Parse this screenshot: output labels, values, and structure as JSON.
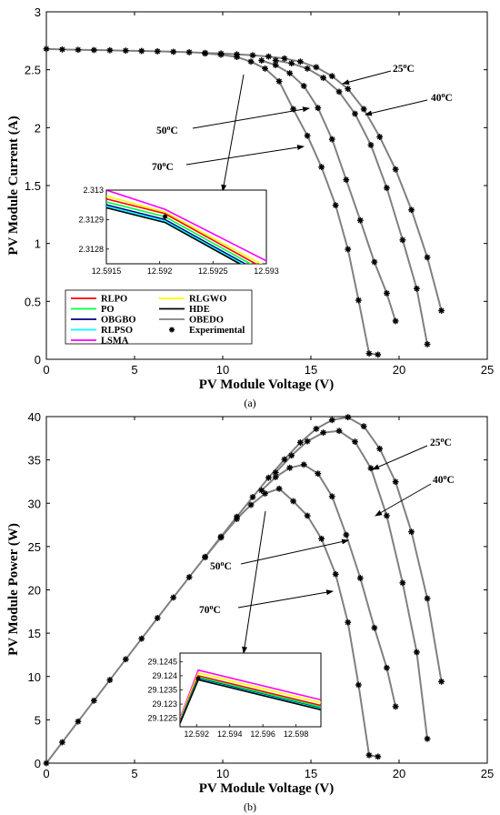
{
  "chart_data": [
    {
      "type": "line",
      "caption": "(a)",
      "xlabel": "PV Module Voltage (V)",
      "ylabel": "PV Module Current (A)",
      "xlim": [
        0,
        25
      ],
      "ylim": [
        0,
        3
      ],
      "xticks": [
        "0",
        "5",
        "10",
        "15",
        "20",
        "25"
      ],
      "yticks": [
        "0",
        "0.5",
        "1",
        "1.5",
        "2",
        "2.5",
        "3"
      ],
      "grid": false,
      "legend": {
        "placement": "bottom-left",
        "entries": [
          {
            "name": "RLPO",
            "color": "#ff0000",
            "style": "line"
          },
          {
            "name": "RLGWO",
            "color": "#ffff00",
            "style": "line"
          },
          {
            "name": "PO",
            "color": "#00ff40",
            "style": "line"
          },
          {
            "name": "HDE",
            "color": "#000000",
            "style": "line"
          },
          {
            "name": "OBGBO",
            "color": "#000080",
            "style": "line"
          },
          {
            "name": "OBEDO",
            "color": "#808080",
            "style": "line"
          },
          {
            "name": "RLPSO",
            "color": "#00ffff",
            "style": "line"
          },
          {
            "name": "Experimental",
            "color": "#000000",
            "style": "star"
          },
          {
            "name": "LSMA",
            "color": "#ff00ff",
            "style": "line"
          }
        ]
      },
      "series": [
        {
          "temperature": "25",
          "x": [
            0,
            0.9,
            1.8,
            2.7,
            3.6,
            4.5,
            5.4,
            6.3,
            7.2,
            8.1,
            9.0,
            9.9,
            10.8,
            11.7,
            12.6,
            13.5,
            14.4,
            15.3,
            16.2,
            17.1,
            18.0,
            18.9,
            19.8,
            20.7,
            21.6,
            22.4
          ],
          "y": [
            2.68,
            2.675,
            2.672,
            2.67,
            2.668,
            2.665,
            2.662,
            2.659,
            2.655,
            2.651,
            2.645,
            2.64,
            2.633,
            2.625,
            2.614,
            2.597,
            2.57,
            2.522,
            2.445,
            2.335,
            2.16,
            1.92,
            1.64,
            1.29,
            0.88,
            0.42
          ]
        },
        {
          "temperature": "40",
          "x": [
            13.0,
            13.9,
            14.8,
            15.7,
            16.6,
            17.5,
            18.4,
            19.3,
            20.2,
            21.0,
            21.6
          ],
          "y": [
            2.58,
            2.555,
            2.51,
            2.43,
            2.31,
            2.12,
            1.85,
            1.48,
            1.03,
            0.61,
            0.13
          ]
        },
        {
          "temperature": "50",
          "x": [
            12.2,
            13.0,
            13.8,
            14.6,
            15.4,
            16.2,
            17.0,
            17.8,
            18.6,
            19.3,
            19.8
          ],
          "y": [
            2.58,
            2.54,
            2.47,
            2.36,
            2.17,
            1.9,
            1.55,
            1.2,
            0.84,
            0.57,
            0.33
          ]
        },
        {
          "temperature": "70",
          "x": [
            9.0,
            9.9,
            10.8,
            11.6,
            12.4,
            13.2,
            14.0,
            14.8,
            15.6,
            16.4,
            17.1,
            17.7,
            18.3,
            18.8
          ],
          "y": [
            2.64,
            2.63,
            2.61,
            2.57,
            2.51,
            2.4,
            2.16,
            1.93,
            1.66,
            1.33,
            0.95,
            0.51,
            0.05,
            0.04
          ]
        }
      ],
      "annotations": [
        {
          "text": "25°C",
          "temperature": "25"
        },
        {
          "text": "40°C",
          "temperature": "40"
        },
        {
          "text": "50°C",
          "temperature": "50"
        },
        {
          "text": "70°C",
          "temperature": "70"
        }
      ],
      "inset": {
        "xlim": [
          12.5915,
          12.593
        ],
        "ylim": [
          2.31275,
          2.313
        ],
        "xticks": [
          "12.5915",
          "12.592",
          "12.5925",
          "12.593"
        ],
        "yticks": [
          "2.3128",
          "2.3129",
          "2.313"
        ],
        "lines": [
          {
            "name": "LSMA",
            "color": "#ff00ff",
            "y": [
              2.313,
              2.312935,
              2.31276
            ]
          },
          {
            "name": "RLGWO",
            "color": "#ffff00",
            "y": [
              2.31298,
              2.312925,
              2.31274
            ]
          },
          {
            "name": "RLPO",
            "color": "#ff0000",
            "y": [
              2.31297,
              2.31292,
              2.31273
            ]
          },
          {
            "name": "PO",
            "color": "#00ff40",
            "y": [
              2.31296,
              2.31291,
              2.31272
            ]
          },
          {
            "name": "OBGBO",
            "color": "#000080",
            "y": [
              2.31295,
              2.3129,
              2.31271
            ]
          },
          {
            "name": "RLPSO",
            "color": "#00ffff",
            "y": [
              2.312945,
              2.312895,
              2.312705
            ]
          },
          {
            "name": "HDE",
            "color": "#000000",
            "y": [
              2.31294,
              2.31289,
              2.3127
            ]
          }
        ],
        "x": [
          12.5915,
          12.59205,
          12.593
        ],
        "marker": {
          "x": 12.59205,
          "y": 2.31291
        }
      }
    },
    {
      "type": "line",
      "caption": "(b)",
      "xlabel": "PV Module Voltage (V)",
      "ylabel": "PV Module Power (W)",
      "xlim": [
        0,
        25
      ],
      "ylim": [
        0,
        40
      ],
      "xticks": [
        "0",
        "5",
        "10",
        "15",
        "20",
        "25"
      ],
      "yticks": [
        "0",
        "5",
        "10",
        "15",
        "20",
        "25",
        "30",
        "35",
        "40"
      ],
      "grid": false,
      "series": [
        {
          "temperature": "25",
          "x": [
            0,
            0.9,
            1.8,
            2.7,
            3.6,
            4.5,
            5.4,
            6.3,
            7.2,
            8.1,
            9.0,
            9.9,
            10.8,
            11.7,
            12.6,
            13.5,
            14.4,
            15.3,
            16.2,
            17.1,
            18.0,
            18.9,
            19.8,
            20.7,
            21.6,
            22.4
          ],
          "y": [
            0,
            2.41,
            4.81,
            7.21,
            9.6,
            11.99,
            14.37,
            16.75,
            19.12,
            21.47,
            23.81,
            26.14,
            28.44,
            30.71,
            32.94,
            35.06,
            37.01,
            38.59,
            39.61,
            39.93,
            38.88,
            36.29,
            32.47,
            26.7,
            19.01,
            9.41
          ]
        },
        {
          "temperature": "40",
          "x": [
            13.0,
            13.9,
            14.8,
            15.7,
            16.6,
            17.5,
            18.4,
            19.3,
            20.2,
            21.0,
            21.6
          ],
          "y": [
            33.54,
            35.51,
            37.15,
            38.15,
            38.35,
            37.1,
            34.04,
            28.56,
            20.81,
            12.81,
            2.81
          ]
        },
        {
          "temperature": "50",
          "x": [
            12.2,
            13.0,
            13.8,
            14.6,
            15.4,
            16.2,
            17.0,
            17.8,
            18.6,
            19.3,
            19.8
          ],
          "y": [
            31.48,
            33.02,
            34.09,
            34.46,
            33.42,
            30.78,
            26.35,
            21.36,
            15.62,
            11.0,
            6.53
          ]
        },
        {
          "temperature": "70",
          "x": [
            9.0,
            9.9,
            10.8,
            11.6,
            12.4,
            13.2,
            14.0,
            14.8,
            15.6,
            16.4,
            17.1,
            17.7,
            18.3,
            18.8
          ],
          "y": [
            23.76,
            26.04,
            28.19,
            29.81,
            31.12,
            31.68,
            30.24,
            28.56,
            25.9,
            21.81,
            16.25,
            9.03,
            0.92,
            0.75
          ]
        }
      ],
      "annotations": [
        {
          "text": "25°C",
          "temperature": "25"
        },
        {
          "text": "40°C",
          "temperature": "40"
        },
        {
          "text": "50°C",
          "temperature": "50"
        },
        {
          "text": "70°C",
          "temperature": "70"
        }
      ],
      "inset": {
        "xlim": [
          12.591,
          12.5995
        ],
        "ylim": [
          29.1222,
          29.1248
        ],
        "xticks": [
          "12.592",
          "12.594",
          "12.596",
          "12.598"
        ],
        "yticks": [
          "29.1225",
          "29.123",
          "29.1235",
          "29.124",
          "29.1245"
        ],
        "lines": [
          {
            "name": "LSMA",
            "color": "#ff00ff",
            "y": [
              29.1225,
              29.1242,
              29.12315
            ]
          },
          {
            "name": "RLGWO",
            "color": "#ffff00",
            "y": [
              29.12245,
              29.1241,
              29.12305
            ]
          },
          {
            "name": "RLPO",
            "color": "#ff0000",
            "y": [
              29.1224,
              29.124,
              29.12295
            ]
          },
          {
            "name": "PO",
            "color": "#00ff40",
            "y": [
              29.12238,
              29.12395,
              29.1229
            ]
          },
          {
            "name": "OBGBO",
            "color": "#000080",
            "y": [
              29.12236,
              29.1239,
              29.12285
            ]
          },
          {
            "name": "RLPSO",
            "color": "#00ffff",
            "y": [
              29.12234,
              29.12388,
              29.12283
            ]
          },
          {
            "name": "HDE",
            "color": "#000000",
            "y": [
              29.12232,
              29.12386,
              29.1228
            ]
          }
        ],
        "x": [
          12.591,
          12.5921,
          12.5995
        ],
        "marker": {
          "x": 12.5921,
          "y": 29.1239
        }
      }
    }
  ]
}
